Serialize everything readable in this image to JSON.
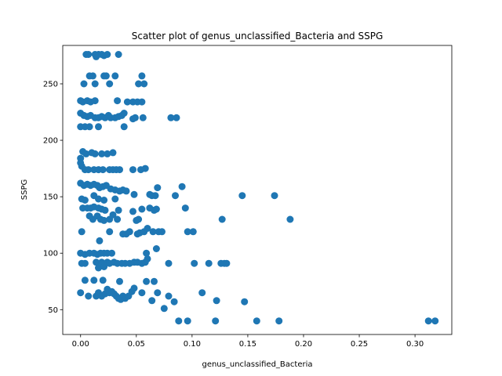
{
  "chart_data": {
    "type": "scatter",
    "title": "Scatter plot of genus_unclassified_Bacteria and SSPG",
    "xlabel": "genus_unclassified_Bacteria",
    "ylabel": "SSPG",
    "xlim": [
      -0.016,
      0.333
    ],
    "ylim": [
      28,
      284
    ],
    "xticks": [
      0.0,
      0.05,
      0.1,
      0.15,
      0.2,
      0.25,
      0.3
    ],
    "xtick_labels": [
      "0.00",
      "0.05",
      "0.10",
      "0.15",
      "0.20",
      "0.25",
      "0.30"
    ],
    "yticks": [
      50,
      100,
      150,
      200,
      250
    ],
    "ytick_labels": [
      "50",
      "100",
      "150",
      "200",
      "250"
    ],
    "grid": false,
    "marker_color": "#1f77b4",
    "points": [
      [
        0.005,
        276
      ],
      [
        0.007,
        276
      ],
      [
        0.013,
        276
      ],
      [
        0.014,
        274
      ],
      [
        0.016,
        276
      ],
      [
        0.019,
        276
      ],
      [
        0.021,
        275
      ],
      [
        0.024,
        276
      ],
      [
        0.034,
        276
      ],
      [
        0.008,
        257
      ],
      [
        0.011,
        257
      ],
      [
        0.021,
        257
      ],
      [
        0.023,
        257
      ],
      [
        0.031,
        257
      ],
      [
        0.055,
        257
      ],
      [
        0.003,
        250
      ],
      [
        0.013,
        250
      ],
      [
        0.026,
        250
      ],
      [
        0.052,
        250
      ],
      [
        0.057,
        250
      ],
      [
        0.0,
        235
      ],
      [
        0.002,
        234
      ],
      [
        0.006,
        235
      ],
      [
        0.009,
        234
      ],
      [
        0.013,
        235
      ],
      [
        0.033,
        235
      ],
      [
        0.042,
        234
      ],
      [
        0.047,
        234
      ],
      [
        0.051,
        234
      ],
      [
        0.055,
        234
      ],
      [
        0.0,
        224
      ],
      [
        0.003,
        222
      ],
      [
        0.006,
        221
      ],
      [
        0.009,
        222
      ],
      [
        0.013,
        220
      ],
      [
        0.016,
        220
      ],
      [
        0.019,
        221
      ],
      [
        0.022,
        220
      ],
      [
        0.025,
        222
      ],
      [
        0.027,
        220
      ],
      [
        0.031,
        220
      ],
      [
        0.034,
        221
      ],
      [
        0.037,
        222
      ],
      [
        0.039,
        224
      ],
      [
        0.047,
        219
      ],
      [
        0.049,
        220
      ],
      [
        0.056,
        220
      ],
      [
        0.081,
        220
      ],
      [
        0.086,
        220
      ],
      [
        0.0,
        212
      ],
      [
        0.004,
        212
      ],
      [
        0.008,
        212
      ],
      [
        0.016,
        212
      ],
      [
        0.039,
        212
      ],
      [
        0.002,
        190
      ],
      [
        0.005,
        188
      ],
      [
        0.01,
        189
      ],
      [
        0.013,
        188
      ],
      [
        0.019,
        188
      ],
      [
        0.024,
        188
      ],
      [
        0.029,
        189
      ],
      [
        0.0,
        184
      ],
      [
        0.0,
        180
      ],
      [
        0.001,
        177
      ],
      [
        0.004,
        174
      ],
      [
        0.007,
        174
      ],
      [
        0.012,
        174
      ],
      [
        0.016,
        174
      ],
      [
        0.02,
        174
      ],
      [
        0.026,
        174
      ],
      [
        0.029,
        174
      ],
      [
        0.032,
        174
      ],
      [
        0.035,
        174
      ],
      [
        0.047,
        174
      ],
      [
        0.054,
        174
      ],
      [
        0.058,
        175
      ],
      [
        0.0,
        162
      ],
      [
        0.003,
        160
      ],
      [
        0.006,
        161
      ],
      [
        0.009,
        160
      ],
      [
        0.012,
        161
      ],
      [
        0.015,
        160
      ],
      [
        0.017,
        158
      ],
      [
        0.02,
        159
      ],
      [
        0.023,
        160
      ],
      [
        0.027,
        157
      ],
      [
        0.031,
        156
      ],
      [
        0.035,
        155
      ],
      [
        0.038,
        156
      ],
      [
        0.041,
        155
      ],
      [
        0.048,
        152
      ],
      [
        0.062,
        152
      ],
      [
        0.064,
        151
      ],
      [
        0.067,
        151
      ],
      [
        0.069,
        158
      ],
      [
        0.091,
        159
      ],
      [
        0.145,
        151
      ],
      [
        0.174,
        151
      ],
      [
        0.001,
        148
      ],
      [
        0.004,
        147
      ],
      [
        0.012,
        151
      ],
      [
        0.016,
        148
      ],
      [
        0.021,
        147
      ],
      [
        0.031,
        148
      ],
      [
        0.085,
        151
      ],
      [
        0.002,
        140
      ],
      [
        0.006,
        140
      ],
      [
        0.009,
        140
      ],
      [
        0.012,
        141
      ],
      [
        0.016,
        140
      ],
      [
        0.019,
        139
      ],
      [
        0.022,
        138
      ],
      [
        0.034,
        138
      ],
      [
        0.047,
        137
      ],
      [
        0.055,
        139
      ],
      [
        0.062,
        140
      ],
      [
        0.066,
        138
      ],
      [
        0.068,
        139
      ],
      [
        0.094,
        140
      ],
      [
        0.008,
        133
      ],
      [
        0.011,
        130
      ],
      [
        0.015,
        133
      ],
      [
        0.018,
        130
      ],
      [
        0.021,
        129
      ],
      [
        0.026,
        130
      ],
      [
        0.029,
        134
      ],
      [
        0.033,
        130
      ],
      [
        0.05,
        129
      ],
      [
        0.052,
        130
      ],
      [
        0.127,
        130
      ],
      [
        0.188,
        130
      ],
      [
        0.001,
        119
      ],
      [
        0.026,
        119
      ],
      [
        0.038,
        117
      ],
      [
        0.041,
        117
      ],
      [
        0.044,
        119
      ],
      [
        0.051,
        117
      ],
      [
        0.053,
        118
      ],
      [
        0.057,
        119
      ],
      [
        0.06,
        122
      ],
      [
        0.065,
        119
      ],
      [
        0.07,
        119
      ],
      [
        0.073,
        119
      ],
      [
        0.096,
        119
      ],
      [
        0.101,
        119
      ],
      [
        0.017,
        111
      ],
      [
        0.0,
        100
      ],
      [
        0.004,
        99
      ],
      [
        0.008,
        100
      ],
      [
        0.012,
        100
      ],
      [
        0.015,
        99
      ],
      [
        0.018,
        100
      ],
      [
        0.021,
        100
      ],
      [
        0.024,
        100
      ],
      [
        0.028,
        100
      ],
      [
        0.059,
        100
      ],
      [
        0.068,
        104
      ],
      [
        0.001,
        91
      ],
      [
        0.004,
        91
      ],
      [
        0.014,
        92
      ],
      [
        0.016,
        87
      ],
      [
        0.019,
        92
      ],
      [
        0.021,
        88
      ],
      [
        0.024,
        92
      ],
      [
        0.026,
        91
      ],
      [
        0.03,
        92
      ],
      [
        0.033,
        91
      ],
      [
        0.037,
        91
      ],
      [
        0.04,
        91
      ],
      [
        0.044,
        91
      ],
      [
        0.048,
        92
      ],
      [
        0.051,
        92
      ],
      [
        0.055,
        91
      ],
      [
        0.058,
        92
      ],
      [
        0.06,
        95
      ],
      [
        0.079,
        91
      ],
      [
        0.102,
        91
      ],
      [
        0.115,
        91
      ],
      [
        0.126,
        91
      ],
      [
        0.129,
        91
      ],
      [
        0.131,
        91
      ],
      [
        0.004,
        76
      ],
      [
        0.012,
        76
      ],
      [
        0.02,
        76
      ],
      [
        0.035,
        75
      ],
      [
        0.059,
        75
      ],
      [
        0.066,
        75
      ],
      [
        0.0,
        65
      ],
      [
        0.007,
        62
      ],
      [
        0.014,
        62
      ],
      [
        0.016,
        65
      ],
      [
        0.019,
        62
      ],
      [
        0.022,
        64
      ],
      [
        0.024,
        68
      ],
      [
        0.026,
        65
      ],
      [
        0.028,
        66
      ],
      [
        0.03,
        64
      ],
      [
        0.032,
        62
      ],
      [
        0.034,
        60
      ],
      [
        0.036,
        59
      ],
      [
        0.038,
        62
      ],
      [
        0.04,
        60
      ],
      [
        0.043,
        62
      ],
      [
        0.046,
        66
      ],
      [
        0.048,
        69
      ],
      [
        0.055,
        65
      ],
      [
        0.064,
        58
      ],
      [
        0.069,
        65
      ],
      [
        0.075,
        51
      ],
      [
        0.079,
        62
      ],
      [
        0.084,
        57
      ],
      [
        0.109,
        65
      ],
      [
        0.122,
        58
      ],
      [
        0.147,
        57
      ],
      [
        0.088,
        40
      ],
      [
        0.096,
        40
      ],
      [
        0.121,
        40
      ],
      [
        0.158,
        40
      ],
      [
        0.178,
        40
      ],
      [
        0.312,
        40
      ],
      [
        0.318,
        40
      ]
    ]
  }
}
